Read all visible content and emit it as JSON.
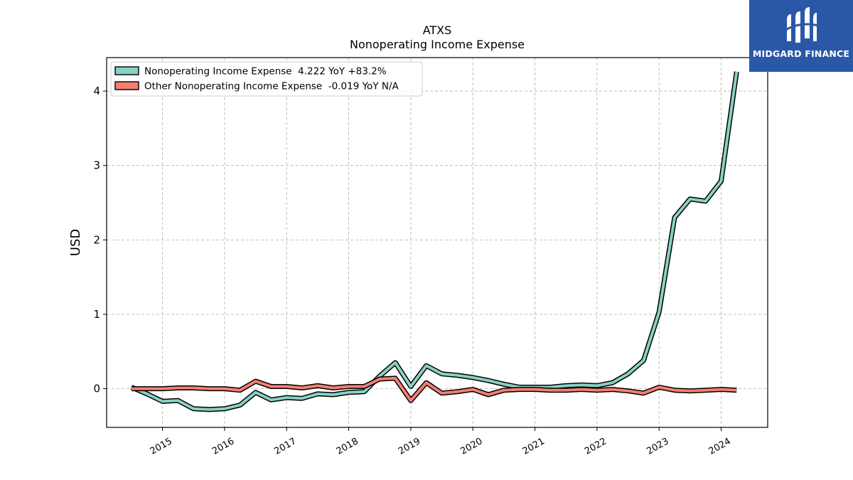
{
  "brand": {
    "name": "MIDGARD FINANCE",
    "bg_color": "#2b58a6"
  },
  "chart_data": {
    "type": "line",
    "title": "ATXS",
    "subtitle": "Nonoperating Income Expense",
    "xlabel": "",
    "ylabel": "USD",
    "xlim": [
      2014.1,
      2024.75
    ],
    "ylim": [
      -0.52,
      4.45
    ],
    "x_ticks": [
      2015,
      2016,
      2017,
      2018,
      2019,
      2020,
      2021,
      2022,
      2023,
      2024
    ],
    "x_tick_labels": [
      "2015",
      "2016",
      "2017",
      "2018",
      "2019",
      "2020",
      "2021",
      "2022",
      "2023",
      "2024"
    ],
    "y_ticks": [
      0,
      1,
      2,
      3,
      4
    ],
    "y_tick_labels": [
      "0",
      "1",
      "2",
      "3",
      "4"
    ],
    "grid": true,
    "legend_position": "top-left",
    "series": [
      {
        "name": "Nonoperating Income Expense  4.222 YoY +83.2%",
        "color": "#88d1c4",
        "points": [
          [
            2014.5,
            0.02
          ],
          [
            2014.75,
            -0.07
          ],
          [
            2015.0,
            -0.17
          ],
          [
            2015.25,
            -0.16
          ],
          [
            2015.5,
            -0.27
          ],
          [
            2015.75,
            -0.28
          ],
          [
            2016.0,
            -0.27
          ],
          [
            2016.25,
            -0.22
          ],
          [
            2016.5,
            -0.05
          ],
          [
            2016.75,
            -0.15
          ],
          [
            2017.0,
            -0.12
          ],
          [
            2017.25,
            -0.13
          ],
          [
            2017.5,
            -0.07
          ],
          [
            2017.75,
            -0.08
          ],
          [
            2018.0,
            -0.05
          ],
          [
            2018.25,
            -0.04
          ],
          [
            2018.5,
            0.17
          ],
          [
            2018.75,
            0.35
          ],
          [
            2019.0,
            0.03
          ],
          [
            2019.25,
            0.31
          ],
          [
            2019.5,
            0.2
          ],
          [
            2019.75,
            0.18
          ],
          [
            2020.0,
            0.15
          ],
          [
            2020.25,
            0.11
          ],
          [
            2020.5,
            0.06
          ],
          [
            2020.75,
            0.02
          ],
          [
            2021.0,
            0.02
          ],
          [
            2021.25,
            0.02
          ],
          [
            2021.5,
            0.04
          ],
          [
            2021.75,
            0.05
          ],
          [
            2022.0,
            0.04
          ],
          [
            2022.25,
            0.08
          ],
          [
            2022.5,
            0.2
          ],
          [
            2022.75,
            0.38
          ],
          [
            2023.0,
            1.03
          ],
          [
            2023.25,
            2.3
          ],
          [
            2023.5,
            2.55
          ],
          [
            2023.75,
            2.52
          ],
          [
            2024.0,
            2.79
          ],
          [
            2024.25,
            4.26
          ]
        ]
      },
      {
        "name": "Other Nonoperating Income Expense  -0.019 YoY N/A",
        "color": "#f47f72",
        "points": [
          [
            2014.5,
            0.0
          ],
          [
            2014.75,
            0.0
          ],
          [
            2015.0,
            0.0
          ],
          [
            2015.25,
            0.01
          ],
          [
            2015.5,
            0.01
          ],
          [
            2015.75,
            0.0
          ],
          [
            2016.0,
            0.0
          ],
          [
            2016.25,
            -0.02
          ],
          [
            2016.5,
            0.1
          ],
          [
            2016.75,
            0.03
          ],
          [
            2017.0,
            0.03
          ],
          [
            2017.25,
            0.01
          ],
          [
            2017.5,
            0.04
          ],
          [
            2017.75,
            0.01
          ],
          [
            2018.0,
            0.03
          ],
          [
            2018.25,
            0.03
          ],
          [
            2018.5,
            0.13
          ],
          [
            2018.75,
            0.14
          ],
          [
            2019.0,
            -0.16
          ],
          [
            2019.25,
            0.08
          ],
          [
            2019.5,
            -0.06
          ],
          [
            2019.75,
            -0.04
          ],
          [
            2020.0,
            -0.01
          ],
          [
            2020.25,
            -0.08
          ],
          [
            2020.5,
            -0.02
          ],
          [
            2020.75,
            -0.01
          ],
          [
            2021.0,
            -0.01
          ],
          [
            2021.25,
            -0.02
          ],
          [
            2021.5,
            -0.02
          ],
          [
            2021.75,
            -0.01
          ],
          [
            2022.0,
            -0.02
          ],
          [
            2022.25,
            -0.01
          ],
          [
            2022.5,
            -0.03
          ],
          [
            2022.75,
            -0.06
          ],
          [
            2023.0,
            0.02
          ],
          [
            2023.25,
            -0.02
          ],
          [
            2023.5,
            -0.03
          ],
          [
            2023.75,
            -0.02
          ],
          [
            2024.0,
            -0.01
          ],
          [
            2024.25,
            -0.02
          ]
        ]
      }
    ]
  }
}
